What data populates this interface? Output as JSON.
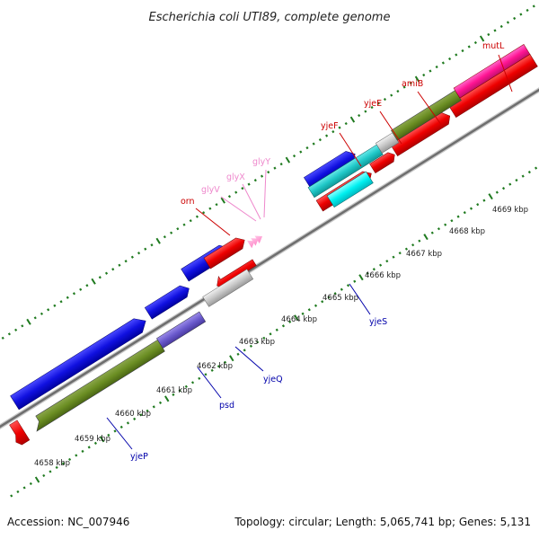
{
  "title": "Escherichia coli UTI89, complete genome",
  "footer": {
    "accession": "Accession: NC_007946",
    "summary": "Topology: circular; Length: 5,065,741 bp; Genes: 5,131"
  },
  "colors": {
    "forward_label": "#cc0000",
    "reverse_label": "#0000aa",
    "trna_label": "#ee88cc",
    "tick": "#1f7a1f",
    "backbone": "#777777"
  },
  "kbp_labels": [
    "4658 kbp",
    "4659 kbp",
    "4660 kbp",
    "4661 kbp",
    "4662 kbp",
    "4663 kbp",
    "4664 kbp",
    "4665 kbp",
    "4666 kbp",
    "4667 kbp",
    "4668 kbp",
    "4669 kbp"
  ],
  "forward_gene_labels": [
    {
      "name": "orn",
      "type": "cds"
    },
    {
      "name": "glyV",
      "type": "trna"
    },
    {
      "name": "glyX",
      "type": "trna"
    },
    {
      "name": "glyY",
      "type": "trna"
    },
    {
      "name": "yjeF",
      "type": "cds"
    },
    {
      "name": "yjeE",
      "type": "cds"
    },
    {
      "name": "amiB",
      "type": "cds"
    },
    {
      "name": "mutL",
      "type": "cds"
    }
  ],
  "reverse_gene_labels": [
    {
      "name": "yjeP"
    },
    {
      "name": "psd"
    },
    {
      "name": "yjeQ"
    },
    {
      "name": "yjeS"
    }
  ]
}
